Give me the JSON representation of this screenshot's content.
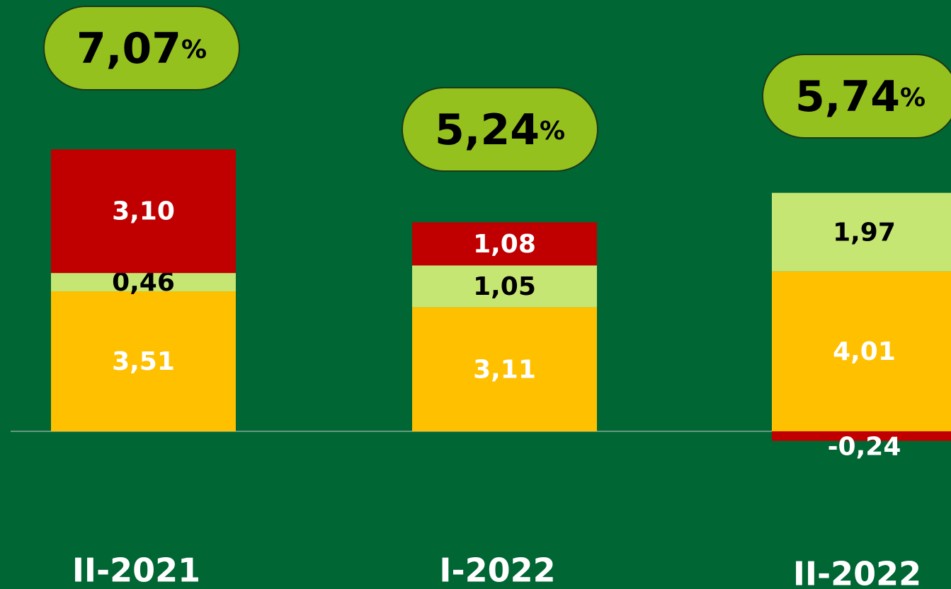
{
  "chart_data": {
    "type": "stacked_bar",
    "categories": [
      "II-2021",
      "I-2022",
      "II-2022"
    ],
    "series": [
      {
        "color": "#ffc000",
        "label_color": "#ffffff",
        "values": [
          3.51,
          3.11,
          4.01
        ],
        "value_labels": [
          "3,51",
          "3,11",
          "4,01"
        ]
      },
      {
        "color": "#c6e674",
        "label_color": "#000000",
        "values": [
          0.46,
          1.05,
          1.97
        ],
        "value_labels": [
          "0,46",
          "1,05",
          "1,97"
        ]
      },
      {
        "color": "#c00000",
        "label_color": "#ffffff",
        "values": [
          3.1,
          1.08,
          -0.24
        ],
        "value_labels": [
          "3,10",
          "1,08",
          "-0,24"
        ]
      }
    ],
    "totals": [
      7.07,
      5.24,
      5.74
    ],
    "total_labels": [
      "7,07",
      "5,24",
      "5,74"
    ],
    "total_unit": "%",
    "total_color": "#95c11f"
  }
}
